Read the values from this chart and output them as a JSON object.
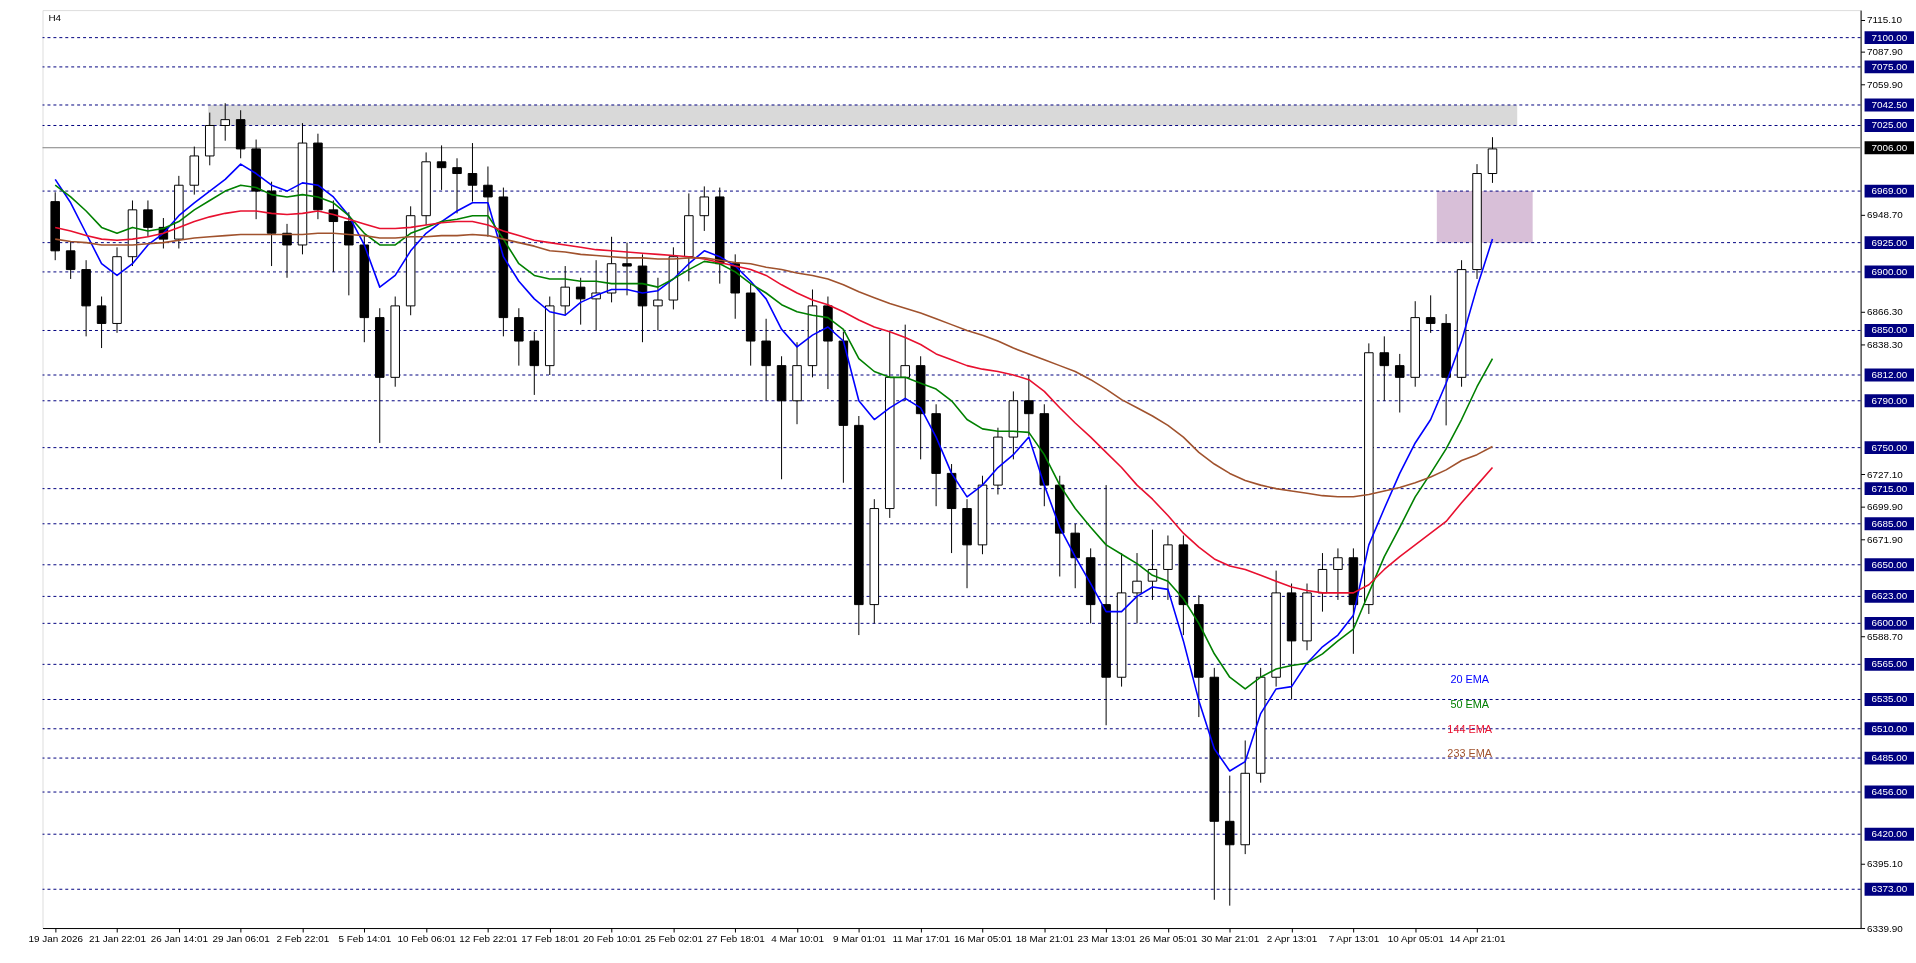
{
  "chart_data": {
    "type": "candlestick",
    "title": "H4",
    "categories": [
      "19 Jan 2026",
      null,
      null,
      null,
      "21 Jan 22:01",
      null,
      null,
      null,
      "26 Jan 14:01",
      null,
      null,
      null,
      "29 Jan 06:01",
      null,
      null,
      null,
      "2 Feb 22:01",
      null,
      null,
      null,
      "5 Feb 14:01",
      null,
      null,
      null,
      "10 Feb 06:01",
      null,
      null,
      null,
      "12 Feb 22:01",
      null,
      null,
      null,
      "17 Feb 18:01",
      null,
      null,
      null,
      "20 Feb 10:01",
      null,
      null,
      null,
      "25 Feb 02:01",
      null,
      null,
      null,
      "27 Feb 18:01",
      null,
      null,
      null,
      "4 Mar 10:01",
      null,
      null,
      null,
      "9 Mar 01:01",
      null,
      null,
      null,
      "11 Mar 17:01",
      null,
      null,
      null,
      "16 Mar 05:01",
      null,
      null,
      null,
      "18 Mar 21:01",
      null,
      null,
      null,
      "23 Mar 13:01",
      null,
      null,
      null,
      "26 Mar 05:01",
      null,
      null,
      null,
      "30 Mar 21:01",
      null,
      null,
      null,
      "2 Apr 13:01",
      null,
      null,
      null,
      "7 Apr 13:01",
      null,
      null,
      null,
      "10 Apr 05:01",
      null,
      null,
      null,
      "14 Apr 21:01",
      null,
      null,
      null,
      null,
      null,
      null,
      null,
      null,
      null,
      null,
      null,
      null,
      null,
      null,
      null,
      null,
      null,
      null,
      null,
      null,
      null,
      null,
      null,
      null
    ],
    "ohlc": [
      [
        6960,
        6968,
        6910,
        6918
      ],
      [
        6918,
        6926,
        6894,
        6902
      ],
      [
        6902,
        6910,
        6845,
        6871
      ],
      [
        6871,
        6879,
        6835,
        6856
      ],
      [
        6856,
        6921,
        6848,
        6913
      ],
      [
        6913,
        6961,
        6905,
        6953
      ],
      [
        6953,
        6961,
        6930,
        6938
      ],
      [
        6938,
        6946,
        6920,
        6928
      ],
      [
        6928,
        6982,
        6920,
        6974
      ],
      [
        6974,
        7007,
        6966,
        6999
      ],
      [
        6999,
        7036,
        6991,
        7025
      ],
      [
        7025,
        7044,
        7012,
        7030
      ],
      [
        7030,
        7038,
        6997,
        7005
      ],
      [
        7005,
        7013,
        6945,
        6969
      ],
      [
        6969,
        6977,
        6905,
        6933
      ],
      [
        6933,
        6941,
        6895,
        6923
      ],
      [
        6923,
        7027,
        6915,
        7010
      ],
      [
        7010,
        7018,
        6945,
        6953
      ],
      [
        6953,
        6961,
        6900,
        6943
      ],
      [
        6943,
        6951,
        6880,
        6923
      ],
      [
        6923,
        6931,
        6840,
        6861
      ],
      [
        6861,
        6869,
        6754,
        6810
      ],
      [
        6810,
        6879,
        6802,
        6871
      ],
      [
        6871,
        6956,
        6863,
        6948
      ],
      [
        6948,
        7002,
        6940,
        6994
      ],
      [
        6994,
        7008,
        6970,
        6989
      ],
      [
        6989,
        6997,
        6950,
        6984
      ],
      [
        6984,
        7010,
        6960,
        6974
      ],
      [
        6974,
        6990,
        6930,
        6964
      ],
      [
        6964,
        6972,
        6845,
        6861
      ],
      [
        6861,
        6869,
        6820,
        6841
      ],
      [
        6841,
        6849,
        6795,
        6820
      ],
      [
        6820,
        6879,
        6812,
        6871
      ],
      [
        6871,
        6905,
        6863,
        6887
      ],
      [
        6887,
        6895,
        6855,
        6877
      ],
      [
        6877,
        6910,
        6850,
        6882
      ],
      [
        6882,
        6930,
        6874,
        6907
      ],
      [
        6907,
        6925,
        6880,
        6905
      ],
      [
        6905,
        6915,
        6840,
        6871
      ],
      [
        6871,
        6895,
        6850,
        6876
      ],
      [
        6876,
        6921,
        6868,
        6913
      ],
      [
        6913,
        6967,
        6892,
        6948
      ],
      [
        6948,
        6973,
        6935,
        6964
      ],
      [
        6964,
        6972,
        6890,
        6907
      ],
      [
        6907,
        6915,
        6860,
        6882
      ],
      [
        6882,
        6890,
        6820,
        6841
      ],
      [
        6841,
        6860,
        6790,
        6820
      ],
      [
        6820,
        6828,
        6723,
        6790
      ],
      [
        6790,
        6840,
        6770,
        6820
      ],
      [
        6820,
        6885,
        6810,
        6871
      ],
      [
        6871,
        6879,
        6800,
        6841
      ],
      [
        6841,
        6849,
        6720,
        6769
      ],
      [
        6769,
        6777,
        6590,
        6616
      ],
      [
        6616,
        6706,
        6600,
        6698
      ],
      [
        6698,
        6850,
        6690,
        6810
      ],
      [
        6810,
        6855,
        6790,
        6820
      ],
      [
        6820,
        6828,
        6740,
        6779
      ],
      [
        6779,
        6787,
        6700,
        6728
      ],
      [
        6728,
        6736,
        6660,
        6698
      ],
      [
        6698,
        6706,
        6630,
        6667
      ],
      [
        6667,
        6726,
        6659,
        6718
      ],
      [
        6718,
        6767,
        6710,
        6759
      ],
      [
        6759,
        6798,
        6740,
        6790
      ],
      [
        6790,
        6812,
        6760,
        6779
      ],
      [
        6779,
        6787,
        6700,
        6718
      ],
      [
        6718,
        6726,
        6640,
        6677
      ],
      [
        6677,
        6685,
        6630,
        6656
      ],
      [
        6656,
        6664,
        6600,
        6616
      ],
      [
        6616,
        6718,
        6513,
        6554
      ],
      [
        6554,
        6660,
        6546,
        6626
      ],
      [
        6626,
        6660,
        6600,
        6636
      ],
      [
        6636,
        6680,
        6620,
        6646
      ],
      [
        6646,
        6675,
        6620,
        6667
      ],
      [
        6667,
        6675,
        6590,
        6616
      ],
      [
        6616,
        6624,
        6520,
        6554
      ],
      [
        6554,
        6562,
        6364,
        6431
      ],
      [
        6431,
        6470,
        6359,
        6411
      ],
      [
        6411,
        6500,
        6403,
        6472
      ],
      [
        6472,
        6562,
        6464,
        6554
      ],
      [
        6554,
        6645,
        6546,
        6626
      ],
      [
        6626,
        6634,
        6535,
        6585
      ],
      [
        6585,
        6634,
        6577,
        6626
      ],
      [
        6626,
        6660,
        6610,
        6646
      ],
      [
        6646,
        6664,
        6620,
        6656
      ],
      [
        6656,
        6664,
        6574,
        6616
      ],
      [
        6616,
        6839,
        6608,
        6831
      ],
      [
        6831,
        6845,
        6790,
        6820
      ],
      [
        6820,
        6830,
        6780,
        6810
      ],
      [
        6810,
        6875,
        6802,
        6861
      ],
      [
        6861,
        6880,
        6848,
        6856
      ],
      [
        6856,
        6864,
        6769,
        6810
      ],
      [
        6810,
        6910,
        6802,
        6902
      ],
      [
        6902,
        6992,
        6894,
        6984
      ],
      [
        6984,
        7015,
        6976,
        7005
      ],
      null,
      null,
      null,
      null,
      null,
      null,
      null,
      null,
      null,
      null,
      null,
      null,
      null,
      null,
      null,
      null,
      null,
      null,
      null,
      null,
      null,
      null,
      null
    ],
    "series": [
      {
        "name": "20 EMA",
        "type": "line",
        "color": "#0000ff",
        "values": [
          6979,
          6959,
          6933,
          6907,
          6897,
          6907,
          6923,
          6933,
          6948,
          6959,
          6969,
          6979,
          6992,
          6984,
          6974,
          6969,
          6976,
          6974,
          6964,
          6948,
          6923,
          6887,
          6897,
          6918,
          6933,
          6943,
          6952,
          6959,
          6959,
          6913,
          6892,
          6877,
          6866,
          6863,
          6874,
          6880,
          6885,
          6885,
          6882,
          6884,
          6894,
          6907,
          6918,
          6913,
          6905,
          6892,
          6877,
          6851,
          6836,
          6846,
          6853,
          6841,
          6790,
          6774,
          6784,
          6792,
          6784,
          6759,
          6728,
          6708,
          6718,
          6733,
          6744,
          6759,
          6718,
          6682,
          6657,
          6634,
          6610,
          6610,
          6623,
          6631,
          6629,
          6585,
          6534,
          6493,
          6474,
          6482,
          6523,
          6544,
          6546,
          6566,
          6580,
          6590,
          6607,
          6667,
          6698,
          6728,
          6754,
          6774,
          6805,
          6841,
          6887,
          6928,
          null,
          null,
          null,
          null,
          null,
          null,
          null,
          null,
          null,
          null,
          null,
          null,
          null,
          null,
          null,
          null,
          null,
          null,
          null,
          null,
          null,
          null,
          null
        ]
      },
      {
        "name": "50 EMA",
        "type": "line",
        "color": "#008000",
        "values": [
          6974,
          6964,
          6952,
          6938,
          6933,
          6938,
          6935,
          6937,
          6943,
          6953,
          6961,
          6969,
          6974,
          6972,
          6966,
          6964,
          6966,
          6964,
          6959,
          6948,
          6933,
          6923,
          6923,
          6933,
          6938,
          6943,
          6945,
          6948,
          6948,
          6928,
          6907,
          6897,
          6894,
          6894,
          6892,
          6892,
          6890,
          6890,
          6890,
          6887,
          6894,
          6902,
          6909,
          6907,
          6900,
          6890,
          6882,
          6872,
          6866,
          6863,
          6861,
          6851,
          6826,
          6815,
          6810,
          6810,
          6805,
          6800,
          6790,
          6774,
          6766,
          6764,
          6764,
          6763,
          6744,
          6718,
          6698,
          6682,
          6667,
          6659,
          6651,
          6641,
          6636,
          6621,
          6600,
          6574,
          6554,
          6544,
          6554,
          6561,
          6564,
          6566,
          6574,
          6585,
          6595,
          6626,
          6657,
          6682,
          6708,
          6728,
          6749,
          6774,
          6802,
          6826,
          null,
          null,
          null,
          null,
          null,
          null,
          null,
          null,
          null,
          null,
          null,
          null,
          null,
          null,
          null,
          null,
          null,
          null,
          null,
          null,
          null,
          null,
          null
        ]
      },
      {
        "name": "144 EMA",
        "type": "line",
        "color": "#e8102f",
        "values": [
          6938,
          6935,
          6931,
          6928,
          6927,
          6928,
          6930,
          6933,
          6938,
          6943,
          6947,
          6950,
          6952,
          6952,
          6950,
          6949,
          6950,
          6952,
          6949,
          6945,
          6941,
          6937,
          6937,
          6938,
          6940,
          6942,
          6943,
          6943,
          6940,
          6935,
          6931,
          6927,
          6925,
          6923,
          6921,
          6919,
          6918,
          6917,
          6916,
          6915,
          6914,
          6913,
          6911,
          6908,
          6905,
          6902,
          6897,
          6889,
          6882,
          6876,
          6872,
          6866,
          6859,
          6853,
          6849,
          6844,
          6838,
          6830,
          6825,
          6820,
          6817,
          6815,
          6812,
          6808,
          6798,
          6784,
          6771,
          6759,
          6746,
          6733,
          6718,
          6706,
          6692,
          6677,
          6665,
          6655,
          6649,
          6646,
          6641,
          6636,
          6631,
          6628,
          6626,
          6626,
          6626,
          6633,
          6646,
          6657,
          6667,
          6677,
          6687,
          6703,
          6718,
          6733,
          null,
          null,
          null,
          null,
          null,
          null,
          null,
          null,
          null,
          null,
          null,
          null,
          null,
          null,
          null,
          null,
          null,
          null,
          null,
          null,
          null,
          null,
          null
        ]
      },
      {
        "name": "233 EMA",
        "type": "line",
        "color": "#a0522d",
        "values": [
          6928,
          6926,
          6925,
          6923,
          6923,
          6923,
          6924,
          6925,
          6927,
          6929,
          6930,
          6931,
          6932,
          6932,
          6932,
          6932,
          6932,
          6933,
          6933,
          6932,
          6931,
          6929,
          6929,
          6930,
          6930,
          6931,
          6931,
          6932,
          6931,
          6928,
          6925,
          6922,
          6918,
          6917,
          6915,
          6914,
          6913,
          6912,
          6912,
          6911,
          6911,
          6912,
          6912,
          6910,
          6908,
          6907,
          6904,
          6902,
          6899,
          6897,
          6894,
          6889,
          6883,
          6878,
          6873,
          6869,
          6865,
          6860,
          6855,
          6850,
          6846,
          6841,
          6835,
          6830,
          6825,
          6820,
          6815,
          6808,
          6800,
          6791,
          6784,
          6777,
          6769,
          6759,
          6746,
          6736,
          6728,
          6722,
          6718,
          6715,
          6713,
          6711,
          6709,
          6708,
          6708,
          6710,
          6713,
          6716,
          6720,
          6725,
          6731,
          6739,
          6744,
          6751,
          null,
          null,
          null,
          null,
          null,
          null,
          null,
          null,
          null,
          null,
          null,
          null,
          null,
          null,
          null,
          null,
          null,
          null,
          null,
          null,
          null,
          null,
          null
        ]
      }
    ],
    "ylim": [
      6339.9,
      7123.5
    ],
    "yticks": [
      {
        "value": 7115.1,
        "label": "7115.10"
      },
      {
        "value": 7087.9,
        "label": "7087.90"
      },
      {
        "value": 7059.9,
        "label": "7059.90"
      },
      {
        "value": 6948.7,
        "label": "6948.70"
      },
      {
        "value": 6866.3,
        "label": "6866.30"
      },
      {
        "value": 6838.3,
        "label": "6838.30"
      },
      {
        "value": 6727.1,
        "label": "6727.10"
      },
      {
        "value": 6699.9,
        "label": "6699.90"
      },
      {
        "value": 6671.9,
        "label": "6671.90"
      },
      {
        "value": 6588.7,
        "label": "6588.70"
      },
      {
        "value": 6395.1,
        "label": "6395.10"
      },
      {
        "value": 6339.9,
        "label": "6339.90"
      }
    ],
    "ref_lines": [
      {
        "axis": "y",
        "value": 7100,
        "label": "7100.00",
        "color": "#000080",
        "line_style": "dashed"
      },
      {
        "axis": "y",
        "value": 7075,
        "label": "7075.00",
        "color": "#000080",
        "line_style": "dashed"
      },
      {
        "axis": "y",
        "value": 7042.5,
        "label": "7042.50",
        "color": "#000080",
        "line_style": "dashed"
      },
      {
        "axis": "y",
        "value": 7025,
        "label": "7025.00",
        "color": "#000080",
        "line_style": "dashed"
      },
      {
        "axis": "y",
        "value": 7006,
        "label": "7006.00",
        "color": "#808080",
        "line_style": "solid"
      },
      {
        "axis": "y",
        "value": 6969,
        "label": "6969.00",
        "color": "#000080",
        "line_style": "dashed"
      },
      {
        "axis": "y",
        "value": 6925,
        "label": "6925.00",
        "color": "#000080",
        "line_style": "dashed"
      },
      {
        "axis": "y",
        "value": 6900,
        "label": "6900.00",
        "color": "#000080",
        "line_style": "dashed"
      },
      {
        "axis": "y",
        "value": 6850,
        "label": "6850.00",
        "color": "#000080",
        "line_style": "dashed"
      },
      {
        "axis": "y",
        "value": 6812,
        "label": "6812.00",
        "color": "#000080",
        "line_style": "dashed"
      },
      {
        "axis": "y",
        "value": 6790,
        "label": "6790.00",
        "color": "#000080",
        "line_style": "dashed"
      },
      {
        "axis": "y",
        "value": 6750,
        "label": "6750.00",
        "color": "#000080",
        "line_style": "dashed"
      },
      {
        "axis": "y",
        "value": 6715,
        "label": "6715.00",
        "color": "#000080",
        "line_style": "dashed"
      },
      {
        "axis": "y",
        "value": 6685,
        "label": "6685.00",
        "color": "#000080",
        "line_style": "dashed"
      },
      {
        "axis": "y",
        "value": 6650,
        "label": "6650.00",
        "color": "#000080",
        "line_style": "dashed"
      },
      {
        "axis": "y",
        "value": 6623,
        "label": "6623.00",
        "color": "#000080",
        "line_style": "dashed"
      },
      {
        "axis": "y",
        "value": 6600,
        "label": "6600.00",
        "color": "#000080",
        "line_style": "dashed"
      },
      {
        "axis": "y",
        "value": 6565,
        "label": "6565.00",
        "color": "#000080",
        "line_style": "dashed"
      },
      {
        "axis": "y",
        "value": 6535,
        "label": "6535.00",
        "color": "#000080",
        "line_style": "dashed"
      },
      {
        "axis": "y",
        "value": 6510,
        "label": "6510.00",
        "color": "#000080",
        "line_style": "dashed"
      },
      {
        "axis": "y",
        "value": 6485,
        "label": "6485.00",
        "color": "#000080",
        "line_style": "dashed"
      },
      {
        "axis": "y",
        "value": 6456,
        "label": "6456.00",
        "color": "#000080",
        "line_style": "dashed"
      },
      {
        "axis": "y",
        "value": 6420,
        "label": "6420.00",
        "color": "#000080",
        "line_style": "dashed"
      },
      {
        "axis": "y",
        "value": 6373,
        "label": "6373.00",
        "color": "#000080",
        "line_style": "dashed"
      }
    ],
    "bands": [
      {
        "axis": "y",
        "from": 7025,
        "to": 7042.5,
        "color": "#d9d9d9"
      },
      {
        "axis": "y",
        "from": 6925,
        "to": 6969,
        "color": "#d8bfd8"
      }
    ],
    "legend": "right",
    "grid": false
  }
}
